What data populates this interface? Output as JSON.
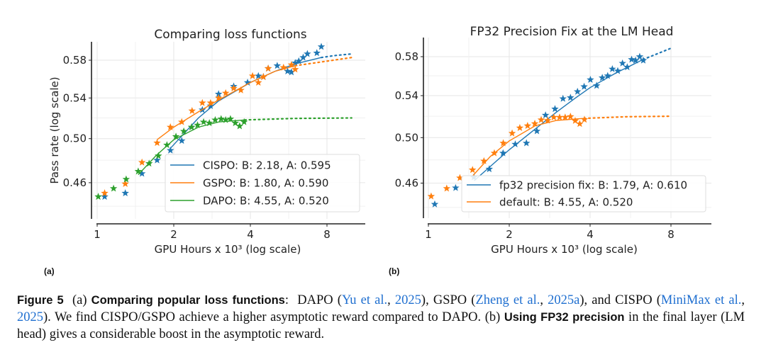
{
  "panels": [
    {
      "label": "(a)"
    },
    {
      "label": "(b)"
    }
  ],
  "colors": {
    "blue": "#1f77b4",
    "orange": "#ff7f0e",
    "green": "#2ca02c",
    "link": "#1f6fd0"
  },
  "chart_data": [
    {
      "type": "scatter",
      "title": "Comparing loss functions",
      "xlabel": "GPU Hours x 10³ (log scale)",
      "ylabel": "Pass rate (log scale)",
      "xscale": "log",
      "yscale": "log",
      "xlim": [
        0.95,
        11.3
      ],
      "ylim": [
        0.43,
        0.6
      ],
      "xticks": [
        {
          "v": 1,
          "label": "1"
        },
        {
          "v": 2,
          "label": "2"
        },
        {
          "v": 4,
          "label": "4"
        },
        {
          "v": 8,
          "label": "8"
        }
      ],
      "yticks": [
        {
          "v": 0.46,
          "label": "0.46"
        },
        {
          "v": 0.5,
          "label": "0.50"
        },
        {
          "v": 0.54,
          "label": "0.54"
        },
        {
          "v": 0.58,
          "label": "0.58"
        }
      ],
      "grid": true,
      "legend_placement": "lower-right",
      "series": [
        {
          "name": "CISPO: B: 2.18, A: 0.595",
          "color": "#1f77b4",
          "points": [
            [
              1.07,
              0.448
            ],
            [
              1.29,
              0.451
            ],
            [
              1.5,
              0.468
            ],
            [
              1.72,
              0.48
            ],
            [
              1.94,
              0.489
            ],
            [
              2.15,
              0.498
            ],
            [
              2.35,
              0.511
            ],
            [
              2.59,
              0.528
            ],
            [
              2.79,
              0.532
            ],
            [
              3.0,
              0.544
            ],
            [
              3.44,
              0.552
            ],
            [
              3.9,
              0.556
            ],
            [
              4.3,
              0.563
            ],
            [
              4.5,
              0.562
            ],
            [
              4.7,
              0.571
            ],
            [
              5.1,
              0.574
            ],
            [
              5.6,
              0.568
            ],
            [
              5.8,
              0.567
            ],
            [
              6.0,
              0.577
            ],
            [
              6.2,
              0.579
            ],
            [
              6.45,
              0.583
            ],
            [
              6.7,
              0.587
            ],
            [
              7.3,
              0.588
            ],
            [
              7.6,
              0.595
            ]
          ],
          "fit": [
            [
              1.94,
              0.491
            ],
            [
              2.5,
              0.52
            ],
            [
              3.0,
              0.537
            ],
            [
              4.0,
              0.556
            ],
            [
              5.0,
              0.568
            ],
            [
              6.0,
              0.576
            ],
            [
              7.6,
              0.583
            ],
            [
              8.5,
              0.585
            ],
            [
              10.0,
              0.587
            ]
          ],
          "fit_solid_until": 7.6
        },
        {
          "name": "GSPO: B: 1.80, A: 0.590",
          "color": "#ff7f0e",
          "points": [
            [
              1.07,
              0.451
            ],
            [
              1.29,
              0.459
            ],
            [
              1.5,
              0.478
            ],
            [
              1.72,
              0.496
            ],
            [
              1.94,
              0.511
            ],
            [
              2.15,
              0.516
            ],
            [
              2.36,
              0.527
            ],
            [
              2.59,
              0.535
            ],
            [
              2.79,
              0.535
            ],
            [
              3.0,
              0.54
            ],
            [
              3.2,
              0.545
            ],
            [
              3.44,
              0.55
            ],
            [
              3.67,
              0.548
            ],
            [
              4.08,
              0.563
            ],
            [
              4.3,
              0.556
            ],
            [
              4.5,
              0.562
            ],
            [
              4.7,
              0.571
            ],
            [
              5.4,
              0.572
            ],
            [
              5.8,
              0.575
            ],
            [
              6.0,
              0.57
            ]
          ],
          "fit": [
            [
              1.72,
              0.499
            ],
            [
              2.0,
              0.511
            ],
            [
              2.5,
              0.526
            ],
            [
              3.0,
              0.538
            ],
            [
              4.0,
              0.556
            ],
            [
              5.0,
              0.568
            ],
            [
              6.0,
              0.574
            ],
            [
              8.0,
              0.579
            ],
            [
              10.0,
              0.583
            ]
          ],
          "fit_solid_until": 6.0
        },
        {
          "name": "DAPO: B: 4.55, A: 0.520",
          "color": "#2ca02c",
          "points": [
            [
              1.01,
              0.448
            ],
            [
              1.16,
              0.455
            ],
            [
              1.3,
              0.463
            ],
            [
              1.45,
              0.47
            ],
            [
              1.6,
              0.477
            ],
            [
              1.74,
              0.484
            ],
            [
              1.88,
              0.494
            ],
            [
              2.04,
              0.502
            ],
            [
              2.19,
              0.507
            ],
            [
              2.35,
              0.511
            ],
            [
              2.48,
              0.513
            ],
            [
              2.62,
              0.516
            ],
            [
              2.76,
              0.515
            ],
            [
              2.91,
              0.518
            ],
            [
              3.07,
              0.519
            ],
            [
              3.2,
              0.518
            ],
            [
              3.34,
              0.519
            ],
            [
              3.49,
              0.515
            ],
            [
              3.63,
              0.512
            ],
            [
              3.78,
              0.516
            ]
          ],
          "fit": [
            [
              1.45,
              0.467
            ],
            [
              1.7,
              0.484
            ],
            [
              2.0,
              0.499
            ],
            [
              2.5,
              0.511
            ],
            [
              3.0,
              0.516
            ],
            [
              3.8,
              0.518
            ],
            [
              6.0,
              0.5195
            ],
            [
              10.0,
              0.52
            ]
          ],
          "fit_solid_until": 3.8
        }
      ]
    },
    {
      "type": "scatter",
      "title": "FP32 Precision Fix at the LM Head",
      "xlabel": "GPU Hours x 10³ (log scale)",
      "ylabel": "",
      "xscale": "log",
      "yscale": "log",
      "xlim": [
        0.95,
        11.4
      ],
      "ylim": [
        0.43,
        0.6
      ],
      "xticks": [
        {
          "v": 1,
          "label": "1"
        },
        {
          "v": 2,
          "label": "2"
        },
        {
          "v": 4,
          "label": "4"
        },
        {
          "v": 8,
          "label": "8"
        }
      ],
      "yticks": [
        {
          "v": 0.46,
          "label": "0.46"
        },
        {
          "v": 0.5,
          "label": "0.50"
        },
        {
          "v": 0.54,
          "label": "0.54"
        },
        {
          "v": 0.58,
          "label": "0.58"
        }
      ],
      "grid": true,
      "legend_placement": "lower-right",
      "series": [
        {
          "name": "fp32 precision fix: B: 1.79, A: 0.610",
          "color": "#1f77b4",
          "points": [
            [
              1.056,
              0.4425
            ],
            [
              1.263,
              0.456
            ],
            [
              1.477,
              0.465
            ],
            [
              1.685,
              0.472
            ],
            [
              1.897,
              0.486
            ],
            [
              2.106,
              0.494
            ],
            [
              2.317,
              0.495
            ],
            [
              2.535,
              0.506
            ],
            [
              2.73,
              0.521
            ],
            [
              2.96,
              0.527
            ],
            [
              3.17,
              0.537
            ],
            [
              3.38,
              0.538
            ],
            [
              3.59,
              0.544
            ],
            [
              3.8,
              0.549
            ],
            [
              4.01,
              0.556
            ],
            [
              4.23,
              0.55
            ],
            [
              4.44,
              0.558
            ],
            [
              4.65,
              0.56
            ],
            [
              4.84,
              0.567
            ],
            [
              5.07,
              0.565
            ],
            [
              5.28,
              0.573
            ],
            [
              5.5,
              0.569
            ],
            [
              5.71,
              0.577
            ],
            [
              5.91,
              0.576
            ],
            [
              6.12,
              0.58
            ],
            [
              6.31,
              0.576
            ]
          ],
          "fit": [
            [
              1.48,
              0.462
            ],
            [
              2.0,
              0.489
            ],
            [
              2.5,
              0.508
            ],
            [
              3.0,
              0.524
            ],
            [
              3.5,
              0.537
            ],
            [
              4.0,
              0.548
            ],
            [
              5.0,
              0.563
            ],
            [
              6.3,
              0.577
            ],
            [
              8.0,
              0.589
            ]
          ],
          "fit_solid_until": 6.3
        },
        {
          "name": "default: B: 4.55, A: 0.520",
          "color": "#ff7f0e",
          "points": [
            [
              1.024,
              0.449
            ],
            [
              1.17,
              0.4555
            ],
            [
              1.31,
              0.4644
            ],
            [
              1.46,
              0.4713
            ],
            [
              1.61,
              0.479
            ],
            [
              1.76,
              0.486
            ],
            [
              1.9,
              0.495
            ],
            [
              2.05,
              0.504
            ],
            [
              2.19,
              0.509
            ],
            [
              2.34,
              0.511
            ],
            [
              2.49,
              0.513
            ],
            [
              2.63,
              0.5166
            ],
            [
              2.78,
              0.516
            ],
            [
              2.93,
              0.519
            ],
            [
              3.08,
              0.519
            ],
            [
              3.23,
              0.519
            ],
            [
              3.38,
              0.5197
            ],
            [
              3.52,
              0.5157
            ],
            [
              3.66,
              0.5128
            ],
            [
              3.81,
              0.5168
            ]
          ],
          "fit": [
            [
              1.46,
              0.466
            ],
            [
              1.7,
              0.483
            ],
            [
              2.0,
              0.497
            ],
            [
              2.5,
              0.511
            ],
            [
              3.0,
              0.516
            ],
            [
              3.8,
              0.518
            ],
            [
              5.5,
              0.5195
            ],
            [
              8.0,
              0.52
            ]
          ],
          "fit_solid_until": 3.8
        }
      ]
    }
  ],
  "caption": {
    "segments": [
      {
        "text": "Figure 5",
        "style": "bold"
      },
      {
        "text": "  (a) ",
        "style": "normal"
      },
      {
        "text": "Comparing popular loss functions",
        "style": "bold"
      },
      {
        "text": ":  DAPO (",
        "style": "normal"
      },
      {
        "text": "Yu et al.",
        "style": "link"
      },
      {
        "text": ", ",
        "style": "normal"
      },
      {
        "text": "2025",
        "style": "link"
      },
      {
        "text": "), GSPO (",
        "style": "normal"
      },
      {
        "text": "Zheng et al.",
        "style": "link"
      },
      {
        "text": ", ",
        "style": "normal"
      },
      {
        "text": "2025a",
        "style": "link"
      },
      {
        "text": "), and CISPO (",
        "style": "normal"
      },
      {
        "text": "MiniMax et al.",
        "style": "link"
      },
      {
        "text": ", ",
        "style": "normal"
      },
      {
        "text": "2025",
        "style": "link"
      },
      {
        "text": "). We find CISPO/GSPO achieve a higher asymptotic reward compared to DAPO. (b) ",
        "style": "normal"
      },
      {
        "text": "Using FP32 precision",
        "style": "bold"
      },
      {
        "text": " in the final layer (LM head) gives a considerable boost in the asymptotic reward.",
        "style": "normal"
      }
    ]
  }
}
